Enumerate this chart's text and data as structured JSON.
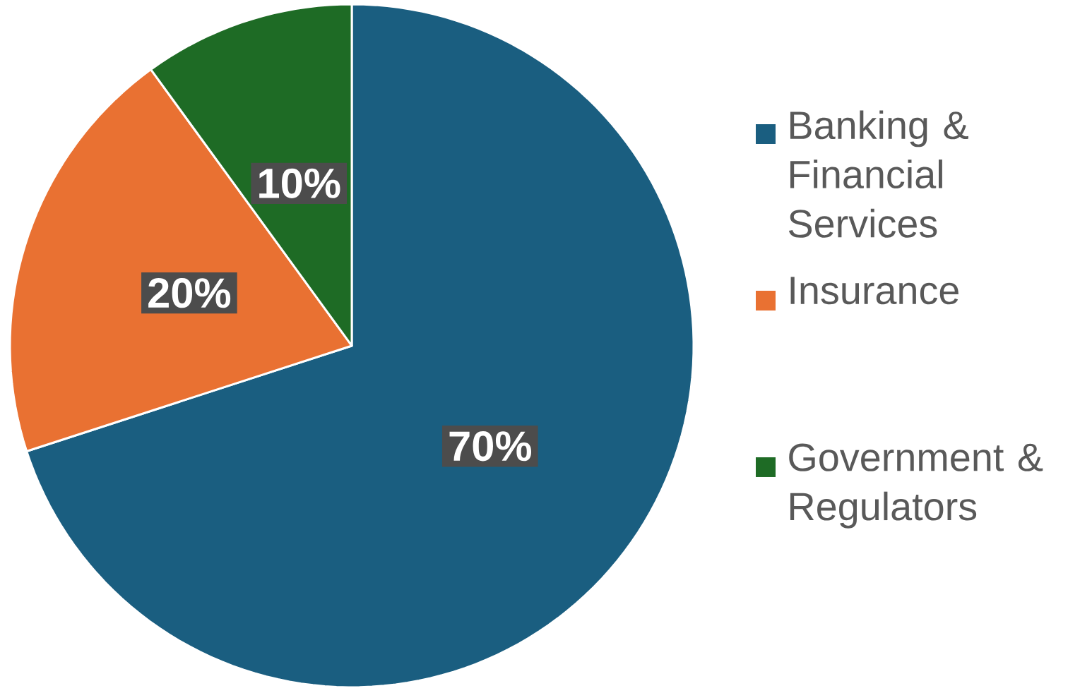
{
  "chart_data": {
    "type": "pie",
    "categories": [
      "Banking & Financial Services",
      "Insurance",
      "Government & Regulators"
    ],
    "values": [
      70,
      20,
      10
    ],
    "value_labels": [
      "70%",
      "20%",
      "10%"
    ],
    "colors": [
      "#1a5e80",
      "#e97132",
      "#1e6b25"
    ],
    "legend": "right"
  }
}
